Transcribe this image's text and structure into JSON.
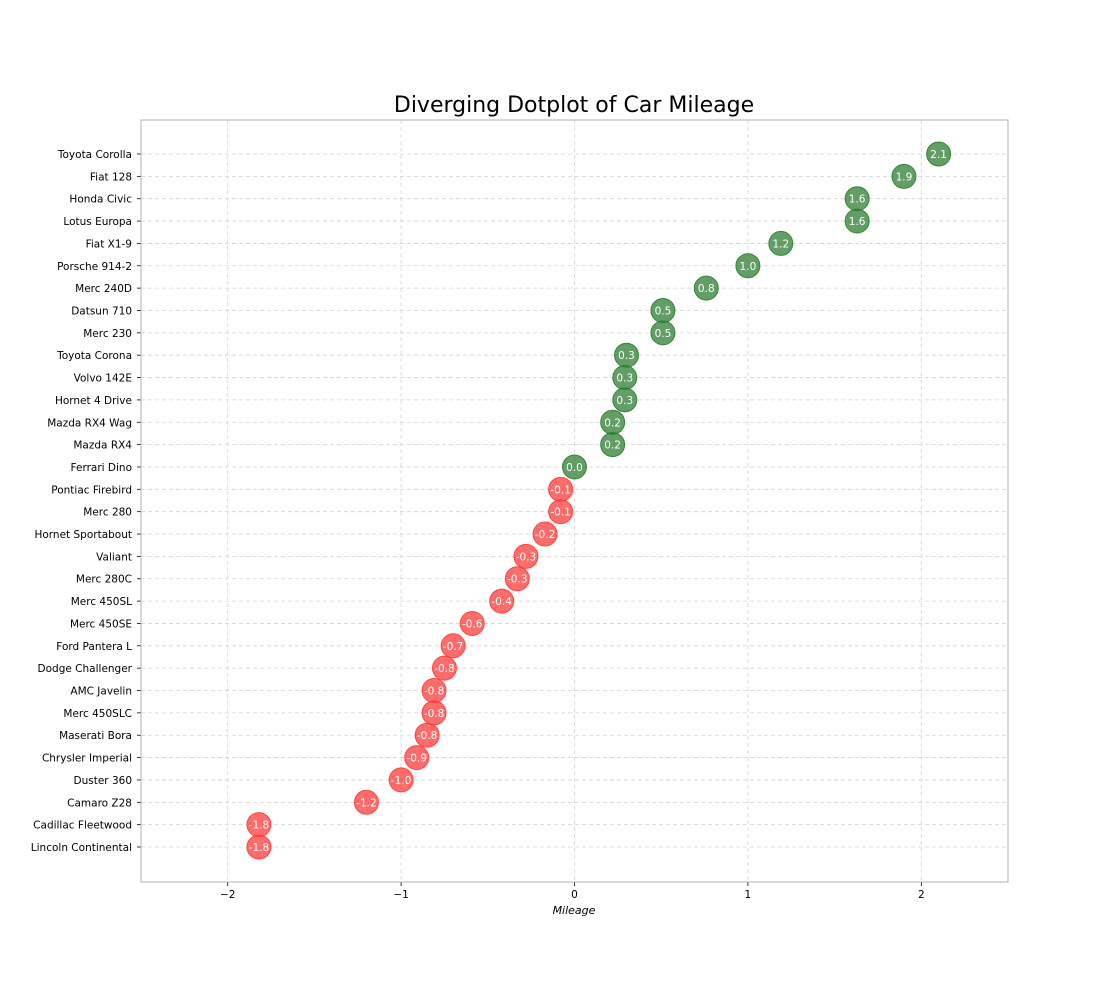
{
  "chart_data": {
    "type": "scatter",
    "title": "Diverging Dotplot of Car Mileage",
    "xlabel": "Mileage",
    "ylabel": "",
    "xlim": [
      -2.5,
      2.5
    ],
    "xticks": [
      -2,
      -1,
      0,
      1,
      2
    ],
    "xtick_labels": [
      "−2",
      "−1",
      "0",
      "1",
      "2"
    ],
    "grid": true,
    "colors": {
      "positive": "#2e7d32",
      "negative": "#ff3b3b",
      "label_text": "#ffffff"
    },
    "categories": [
      "Toyota Corolla",
      "Fiat 128",
      "Honda Civic",
      "Lotus Europa",
      "Fiat X1-9",
      "Porsche 914-2",
      "Merc 240D",
      "Datsun 710",
      "Merc 230",
      "Toyota Corona",
      "Volvo 142E",
      "Hornet 4 Drive",
      "Mazda RX4 Wag",
      "Mazda RX4",
      "Ferrari Dino",
      "Pontiac Firebird",
      "Merc 280",
      "Hornet Sportabout",
      "Valiant",
      "Merc 280C",
      "Merc 450SL",
      "Merc 450SE",
      "Ford Pantera L",
      "Dodge Challenger",
      "AMC Javelin",
      "Merc 450SLC",
      "Maserati Bora",
      "Chrysler Imperial",
      "Duster 360",
      "Camaro Z28",
      "Cadillac Fleetwood",
      "Lincoln Continental"
    ],
    "values": [
      2.1,
      1.9,
      1.63,
      1.63,
      1.19,
      1.0,
      0.76,
      0.51,
      0.51,
      0.3,
      0.29,
      0.29,
      0.22,
      0.22,
      0.0,
      -0.08,
      -0.08,
      -0.17,
      -0.28,
      -0.33,
      -0.42,
      -0.59,
      -0.7,
      -0.75,
      -0.81,
      -0.81,
      -0.85,
      -0.91,
      -1.0,
      -1.2,
      -1.82,
      -1.82
    ],
    "value_labels": [
      "2.1",
      "1.9",
      "1.6",
      "1.6",
      "1.2",
      "1.0",
      "0.8",
      "0.5",
      "0.5",
      "0.3",
      "0.3",
      "0.3",
      "0.2",
      "0.2",
      "0.0",
      "-0.1",
      "-0.1",
      "-0.2",
      "-0.3",
      "-0.3",
      "-0.4",
      "-0.6",
      "-0.7",
      "-0.8",
      "-0.8",
      "-0.8",
      "-0.8",
      "-0.9",
      "-1.0",
      "-1.2",
      "-1.8",
      "-1.8"
    ]
  }
}
